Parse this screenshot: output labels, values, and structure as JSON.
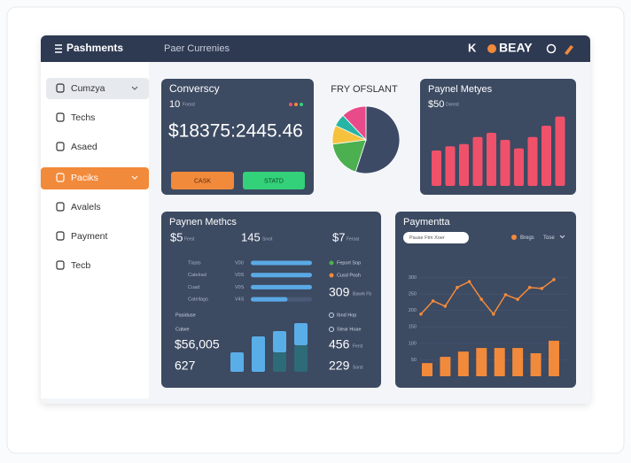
{
  "header": {
    "title": "Pashments",
    "subtitle": "Paer Currenies",
    "brand_prefix": "K",
    "brand": "BEAY"
  },
  "sidebar": {
    "items": [
      "Cumzya",
      "Techs",
      "Asaed",
      "Paciks",
      "Avalels",
      "Payment",
      "Tecb"
    ]
  },
  "conversion": {
    "title": "Converscy",
    "count": "10",
    "count_note": "Forsst",
    "amount": "$18375:2445.46",
    "buttons": [
      "CASK",
      "STATD"
    ]
  },
  "pie": {
    "type": "pie",
    "title": "FRY OFSLANT",
    "values": [
      55,
      18,
      9,
      6,
      12
    ],
    "colors": [
      "#3d4a66",
      "#4caf50",
      "#f6c23e",
      "#26b5a5",
      "#e94b8a"
    ]
  },
  "bar_card": {
    "type": "bar",
    "title": "Paynel Metyes",
    "amount": "$50",
    "note": "Dorest",
    "values": [
      50,
      56,
      59,
      69,
      75,
      65,
      53,
      69,
      85,
      98
    ],
    "color": "#f0516a",
    "ylim": [
      0,
      100
    ]
  },
  "methods": {
    "title": "Paynen Methcs",
    "stats": [
      {
        "value": "$5",
        "note": "Ferst"
      },
      {
        "value": "145",
        "note": "Srvst"
      },
      {
        "value": "$7",
        "note": "Fersat"
      }
    ],
    "rows": [
      {
        "label": "Tlasts",
        "code": "V00",
        "value": 100
      },
      {
        "label": "Catelrad",
        "code": "V0S",
        "value": 100
      },
      {
        "label": "Cuad",
        "code": "V0S",
        "value": 100
      },
      {
        "label": "Cateilags",
        "code": "V4S",
        "value": 60
      }
    ],
    "progress_max": 100,
    "progress_color": "#5aa9e6",
    "legend": [
      {
        "label": "Feport Sop",
        "color": "#4caf50"
      },
      {
        "label": "Cusd Posh",
        "color": "#f28a3b"
      }
    ],
    "highlight": "309",
    "highlight_note": "Bawrk Fb",
    "captions": [
      "Pasiduse",
      "Catwe"
    ],
    "sub_legend": [
      "Ibnd Hop",
      "Slear Hoae"
    ],
    "total": "$56,005",
    "count": "627",
    "second": "456",
    "second_note": "Ferst",
    "third": "229",
    "third_note": "Sorst",
    "stack": {
      "type": "bar",
      "ylim": [
        0,
        60
      ],
      "series": [
        {
          "color": "#2d6b78",
          "values": [
            0,
            0,
            22,
            30
          ]
        },
        {
          "color": "#5aaee8",
          "values": [
            22,
            40,
            24,
            25
          ]
        }
      ]
    }
  },
  "payments": {
    "title": "Paymentta",
    "filter": "Pause Ftm Xoer",
    "legend": "Bregs",
    "menu": "Tose",
    "ylim": [
      0,
      350
    ],
    "yticks": [
      50,
      100,
      150,
      200,
      250,
      300
    ],
    "line": {
      "type": "line",
      "color": "#f28a3b",
      "values": [
        189,
        229,
        213,
        270,
        288,
        234,
        189,
        248,
        234,
        270,
        267,
        294
      ]
    },
    "bars": {
      "type": "bar",
      "color": "#f28a3b",
      "values": [
        40,
        59,
        75,
        86,
        86,
        86,
        70,
        108
      ]
    }
  }
}
